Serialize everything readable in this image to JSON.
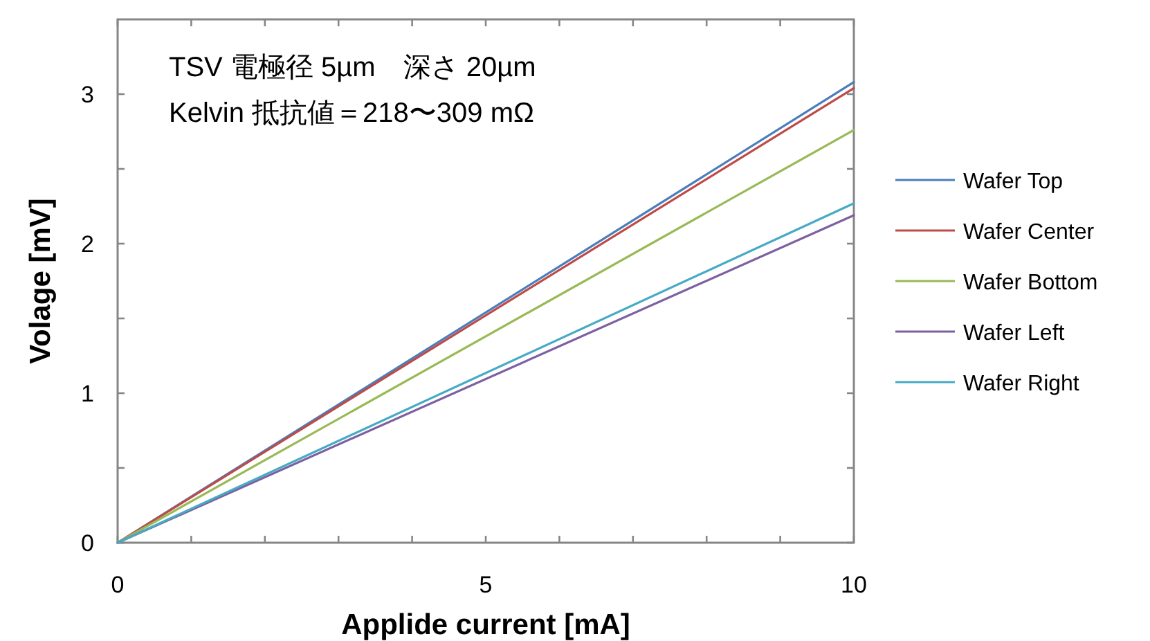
{
  "chart_data": {
    "type": "line",
    "xlabel": "Applide current [mA]",
    "ylabel": "Volage [mV]",
    "annotations": [
      "TSV 電極径 5µm　深さ 20µm",
      "Kelvin 抵抗値＝218〜309 mΩ"
    ],
    "xlim": [
      0,
      10
    ],
    "xticks": [
      0,
      {
        "value": 1,
        "label": null
      },
      {
        "value": 2,
        "label": null
      },
      {
        "value": 3,
        "label": null
      },
      {
        "value": 4,
        "label": null
      },
      5,
      {
        "value": 6,
        "label": null
      },
      {
        "value": 7,
        "label": null
      },
      {
        "value": 8,
        "label": null
      },
      {
        "value": 9,
        "label": null
      },
      10
    ],
    "ylim": [
      0,
      3.5
    ],
    "yticks": [
      0,
      {
        "value": 0.5,
        "label": null
      },
      1,
      {
        "value": 1.5,
        "label": null
      },
      2,
      {
        "value": 2.5,
        "label": null
      },
      3
    ],
    "x": [
      0,
      10
    ],
    "grid": false,
    "legend": "right",
    "marker": "none",
    "line_style": "solid",
    "series": [
      {
        "name": "Wafer Top",
        "color": "#4a7ebb",
        "values": [
          0,
          3.08
        ]
      },
      {
        "name": "Wafer Center",
        "color": "#be4b48",
        "values": [
          0,
          3.04
        ]
      },
      {
        "name": "Wafer Bottom",
        "color": "#98b954",
        "values": [
          0,
          2.76
        ]
      },
      {
        "name": "Wafer Left",
        "color": "#7d60a0",
        "values": [
          0,
          2.19
        ]
      },
      {
        "name": "Wafer Right",
        "color": "#46aac5",
        "values": [
          0,
          2.27
        ]
      }
    ]
  }
}
